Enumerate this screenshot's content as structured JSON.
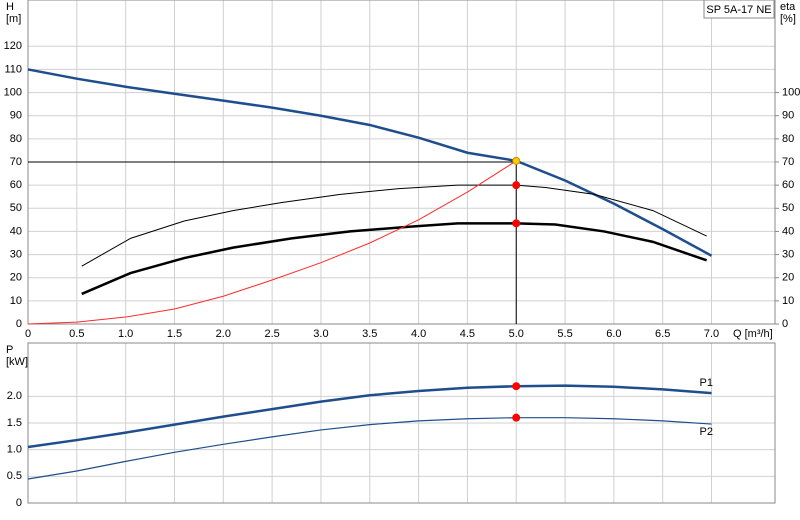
{
  "chart_data": [
    {
      "type": "line",
      "title": "SP 5A-17 NE",
      "ylabel": "H",
      "yunit": "[m]",
      "y2label": "eta",
      "y2unit": "[%]",
      "xlabel": "Q [m³/h]",
      "xlim": [
        0,
        7.65
      ],
      "ylim": [
        0,
        140
      ],
      "y2lim": [
        0,
        140
      ],
      "grid": true,
      "xticks": [
        0,
        0.5,
        {
          "value": 1,
          "label": "1.0"
        },
        1.5,
        {
          "value": 2,
          "label": "2.0"
        },
        2.5,
        {
          "value": 3,
          "label": "3.0"
        },
        3.5,
        {
          "value": 4,
          "label": "4.0"
        },
        4.5,
        {
          "value": 5,
          "label": "5.0"
        },
        5.5,
        {
          "value": 6,
          "label": "6.0"
        },
        6.5,
        {
          "value": 7,
          "label": "7.0"
        }
      ],
      "yticks": [
        0,
        10,
        20,
        30,
        40,
        50,
        60,
        70,
        80,
        90,
        100,
        110,
        120
      ],
      "y2ticks": [
        0,
        10,
        20,
        30,
        40,
        50,
        60,
        70,
        80,
        90,
        100
      ],
      "series": [
        {
          "color": "#1f4e8c",
          "width": 2.5,
          "x": [
            0,
            0.5,
            1,
            1.5,
            2,
            2.5,
            3,
            3.5,
            4,
            4.5,
            5,
            5.5,
            6,
            6.5,
            7
          ],
          "values": [
            110,
            106,
            102.5,
            99.5,
            96.5,
            93.5,
            90,
            86,
            80.5,
            74,
            70.5,
            62,
            52,
            41,
            29.5
          ]
        },
        {
          "color": "#000000",
          "width": 1,
          "axis": "y2",
          "x": [
            0.55,
            1.05,
            1.6,
            2.1,
            2.6,
            3.2,
            3.8,
            4.4,
            5,
            5.3,
            5.8,
            6.4,
            6.95
          ],
          "values": [
            25,
            37,
            44.5,
            49,
            52.5,
            56,
            58.5,
            60,
            60,
            59,
            56,
            49,
            38
          ]
        },
        {
          "color": "#000000",
          "width": 2.5,
          "axis": "y2",
          "x": [
            0.55,
            1.05,
            1.6,
            2.1,
            2.7,
            3.3,
            3.9,
            4.4,
            5,
            5.4,
            5.9,
            6.4,
            6.95
          ],
          "values": [
            13,
            22,
            28.5,
            33,
            37,
            40,
            42,
            43.5,
            43.5,
            43,
            40,
            35.5,
            27.5
          ]
        },
        {
          "color": "#ff2a2a",
          "width": 1,
          "x": [
            0,
            0.5,
            1,
            1.5,
            2,
            2.5,
            3,
            3.5,
            4,
            4.5,
            5
          ],
          "values": [
            0,
            0.8,
            3,
            6.5,
            12,
            19,
            26.5,
            35,
            45,
            57,
            70.5
          ]
        }
      ],
      "duty_point": {
        "x": 5,
        "y": 70
      },
      "points": [
        {
          "x": 5,
          "y": 70.5,
          "color": "#ffcc00"
        },
        {
          "x": 5,
          "y": 60,
          "color": "#ff0000"
        },
        {
          "x": 5,
          "y": 43.5,
          "color": "#ff0000"
        }
      ]
    },
    {
      "type": "line",
      "ylabel": "P",
      "yunit": "[kW]",
      "xlim": [
        0,
        7.65
      ],
      "ylim": [
        0,
        3
      ],
      "grid": true,
      "xticks": [
        0,
        0.5,
        1,
        1.5,
        2,
        2.5,
        3,
        3.5,
        4,
        4.5,
        5,
        5.5,
        6,
        6.5,
        7
      ],
      "yticks": [
        0,
        0.5,
        {
          "value": 1,
          "label": "1.0"
        },
        1.5,
        {
          "value": 2,
          "label": "2.0"
        }
      ],
      "series": [
        {
          "name": "P1",
          "color": "#1f4e8c",
          "width": 2.5,
          "x": [
            0,
            0.5,
            1,
            1.5,
            2,
            2.5,
            3,
            3.5,
            4,
            4.5,
            5,
            5.5,
            6,
            6.5,
            7
          ],
          "values": [
            1.05,
            1.18,
            1.32,
            1.47,
            1.62,
            1.76,
            1.9,
            2.02,
            2.1,
            2.16,
            2.19,
            2.2,
            2.18,
            2.13,
            2.06
          ]
        },
        {
          "name": "P2",
          "color": "#1f4e8c",
          "width": 1.2,
          "x": [
            0,
            0.5,
            1,
            1.5,
            2,
            2.5,
            3,
            3.5,
            4,
            4.5,
            5,
            5.5,
            6,
            6.5,
            7
          ],
          "values": [
            0.45,
            0.6,
            0.78,
            0.95,
            1.1,
            1.24,
            1.37,
            1.47,
            1.54,
            1.58,
            1.6,
            1.6,
            1.58,
            1.54,
            1.48
          ]
        }
      ],
      "points": [
        {
          "x": 5,
          "y": 2.19,
          "color": "#ff0000"
        },
        {
          "x": 5,
          "y": 1.6,
          "color": "#ff0000"
        }
      ]
    }
  ]
}
